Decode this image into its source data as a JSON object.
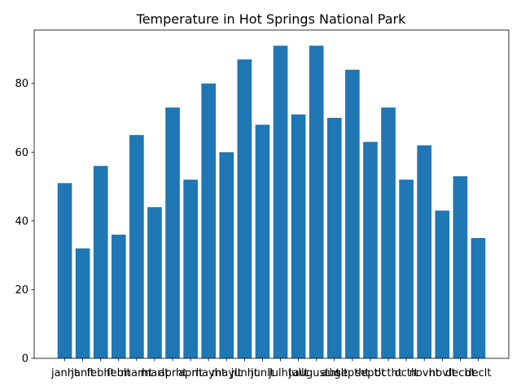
{
  "chart_data": {
    "type": "bar",
    "title": "Temperature in Hot Springs National Park",
    "xlabel": "",
    "ylabel": "",
    "categories": [
      "janht",
      "janlt",
      "febht",
      "feblt",
      "marht",
      "marlt",
      "aprht",
      "aprlt",
      "mayht",
      "maylt",
      "junht",
      "junlt",
      "julht",
      "jullt",
      "augustht",
      "auglt",
      "septht",
      "septlt",
      "octht",
      "octlt",
      "novht",
      "novlt",
      "decht",
      "declt"
    ],
    "tick_labels": [
      "janht",
      "janlt",
      "febht",
      "feblt",
      "marht",
      "marlt",
      "aprht",
      "aprlt",
      "mayht",
      "maylt",
      "junht",
      "junlt",
      "julht",
      "jullt",
      "augustht",
      "auglt",
      "septht",
      "septlt",
      "octht",
      "octlt",
      "novht",
      "novlt",
      "decht",
      "declt"
    ],
    "values": [
      51,
      32,
      56,
      36,
      65,
      44,
      73,
      52,
      80,
      60,
      87,
      68,
      91,
      71,
      91,
      70,
      84,
      63,
      73,
      52,
      62,
      43,
      53,
      35
    ],
    "ylim": [
      0,
      95.55
    ],
    "yticks": [
      0,
      20,
      40,
      60,
      80
    ],
    "grid": false,
    "legend": "none",
    "bar_color": "#1f77b4"
  }
}
